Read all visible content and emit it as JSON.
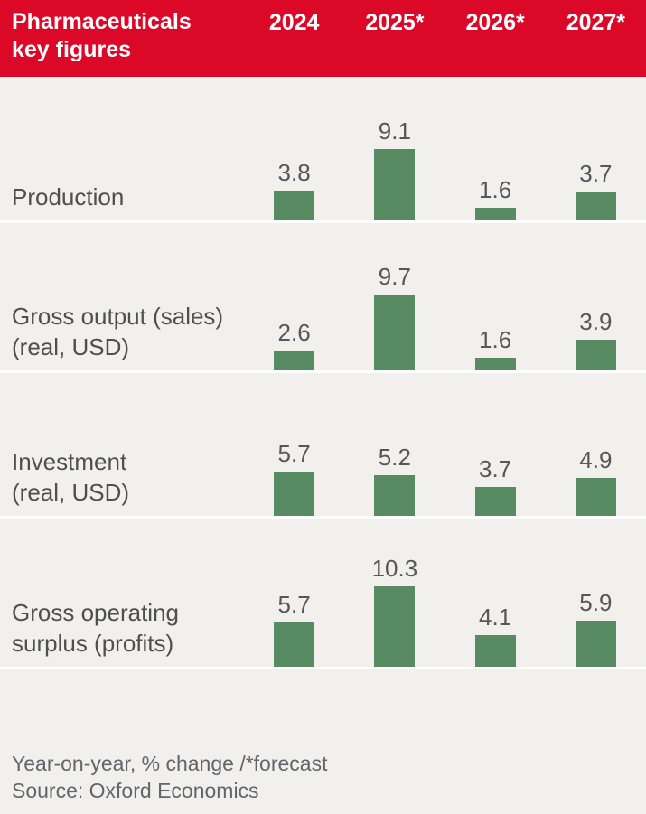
{
  "header": {
    "title_line1": "Pharmaceuticals",
    "title_line2": "key figures",
    "columns": [
      "2024",
      "2025*",
      "2026*",
      "2027*"
    ]
  },
  "chart_data": {
    "type": "bar",
    "title": "Pharmaceuticals key figures",
    "categories": [
      "2024",
      "2025*",
      "2026*",
      "2027*"
    ],
    "series": [
      {
        "name": "Production",
        "label_lines": [
          "Production"
        ],
        "values": [
          3.8,
          9.1,
          1.6,
          3.7
        ]
      },
      {
        "name": "Gross output (sales) (real, USD)",
        "label_lines": [
          "Gross output (sales)",
          "(real, USD)"
        ],
        "values": [
          2.6,
          9.7,
          1.6,
          3.9
        ]
      },
      {
        "name": "Investment (real, USD)",
        "label_lines": [
          "Investment",
          "(real, USD)"
        ],
        "values": [
          5.7,
          5.2,
          3.7,
          4.9
        ]
      },
      {
        "name": "Gross operating surplus (profits)",
        "label_lines": [
          "Gross operating",
          "surplus (profits)"
        ],
        "values": [
          5.7,
          10.3,
          4.1,
          5.9
        ]
      }
    ],
    "value_labels_shown": true,
    "axes_shown": false,
    "grid": false,
    "legend": "none",
    "unit": "Year-on-year, % change",
    "forecast_marker": "* = forecast (2025*, 2026*, 2027*)",
    "ylim": [
      0,
      10.3
    ]
  },
  "footer": {
    "note": "Year-on-year, % change /*forecast",
    "source": "Source: Oxford Economics"
  },
  "colors": {
    "header_red": "#DC0828",
    "bar_green": "#588B62",
    "background": "#F1F0ED",
    "separator_white": "#FFFFFF",
    "row_label_grey": "#4E4F51",
    "value_grey": "#55575A",
    "footer_grey": "#62666C",
    "header_text": "#FFFFFF"
  }
}
